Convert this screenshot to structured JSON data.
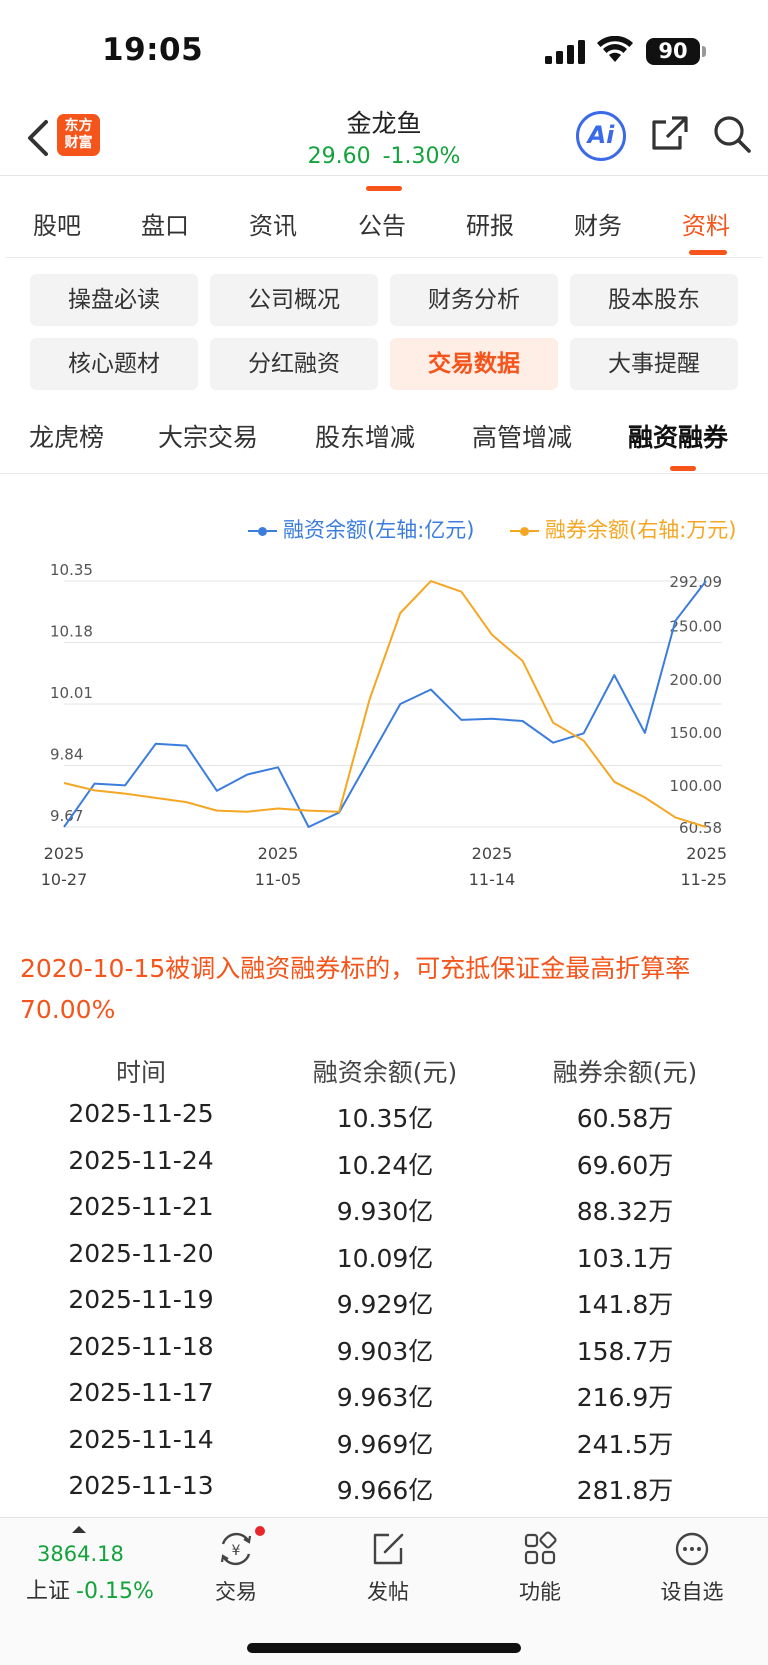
{
  "status": {
    "time": "19:05",
    "battery": "90"
  },
  "header": {
    "logo_line1": "东方",
    "logo_line2": "财富",
    "stock_name": "金龙鱼",
    "price": "29.60",
    "change": "-1.30%",
    "ai_label": "Ai"
  },
  "main_tabs": [
    "股吧",
    "盘口",
    "资讯",
    "公告",
    "研报",
    "财务",
    "资料"
  ],
  "grid_buttons": [
    "操盘必读",
    "公司概况",
    "财务分析",
    "股本股东",
    "核心题材",
    "分红融资",
    "交易数据",
    "大事提醒"
  ],
  "sub_tabs": [
    "龙虎榜",
    "大宗交易",
    "股东增减",
    "高管增减",
    "融资融券"
  ],
  "legend": {
    "left": "融资余额(左轴:亿元)",
    "right": "融券余额(右轴:万元)"
  },
  "chart_data": {
    "type": "line",
    "x": [
      "2025-10-27",
      "2025-10-28",
      "2025-10-29",
      "2025-10-30",
      "2025-10-31",
      "2025-11-03",
      "2025-11-04",
      "2025-11-05",
      "2025-11-06",
      "2025-11-07",
      "2025-11-10",
      "2025-11-11",
      "2025-11-12",
      "2025-11-13",
      "2025-11-14",
      "2025-11-17",
      "2025-11-18",
      "2025-11-19",
      "2025-11-20",
      "2025-11-21",
      "2025-11-24",
      "2025-11-25"
    ],
    "x_tick_labels": [
      {
        "year": "2025",
        "date": "10-27"
      },
      {
        "year": "2025",
        "date": "11-05"
      },
      {
        "year": "2025",
        "date": "11-14"
      },
      {
        "year": "2025",
        "date": "11-25"
      }
    ],
    "left_axis": {
      "ticks": [
        "10.35",
        "10.18",
        "10.01",
        "9.84",
        "9.67"
      ],
      "ylim": [
        9.67,
        10.35
      ]
    },
    "right_axis": {
      "ticks": [
        "292.09",
        "250.00",
        "200.00",
        "150.00",
        "100.00",
        "60.58"
      ],
      "ylim": [
        60.58,
        292.09
      ]
    },
    "series": [
      {
        "name": "融资余额(左轴:亿元)",
        "axis": "left",
        "color": "#3b7ddd",
        "values": [
          9.67,
          9.79,
          9.785,
          9.9,
          9.895,
          9.77,
          9.815,
          9.835,
          9.67,
          9.71,
          9.86,
          10.01,
          10.05,
          9.966,
          9.969,
          9.963,
          9.903,
          9.929,
          10.09,
          9.93,
          10.24,
          10.35
        ]
      },
      {
        "name": "融券余额(右轴:万元)",
        "axis": "right",
        "color": "#f5a623",
        "values": [
          102,
          95,
          92,
          88,
          84,
          76,
          75,
          78,
          76,
          75,
          181,
          262,
          292,
          282,
          241.5,
          216.9,
          158.7,
          141.8,
          103.1,
          88.32,
          69.6,
          60.58
        ]
      }
    ]
  },
  "notice": "2020-10-15被调入融资融券标的，可充抵保证金最高折算率70.00%",
  "table": {
    "headers": [
      "时间",
      "融资余额(元)",
      "融券余额(元)"
    ],
    "rows": [
      [
        "2025-11-25",
        "10.35亿",
        "60.58万"
      ],
      [
        "2025-11-24",
        "10.24亿",
        "69.60万"
      ],
      [
        "2025-11-21",
        "9.930亿",
        "88.32万"
      ],
      [
        "2025-11-20",
        "10.09亿",
        "103.1万"
      ],
      [
        "2025-11-19",
        "9.929亿",
        "141.8万"
      ],
      [
        "2025-11-18",
        "9.903亿",
        "158.7万"
      ],
      [
        "2025-11-17",
        "9.963亿",
        "216.9万"
      ],
      [
        "2025-11-14",
        "9.969亿",
        "241.5万"
      ],
      [
        "2025-11-13",
        "9.966亿",
        "281.8万"
      ]
    ]
  },
  "bottom_bar": {
    "index_value": "3864.18",
    "index_name": "上证",
    "index_change": "-0.15%",
    "items": [
      "交易",
      "发帖",
      "功能",
      "设自选"
    ]
  }
}
